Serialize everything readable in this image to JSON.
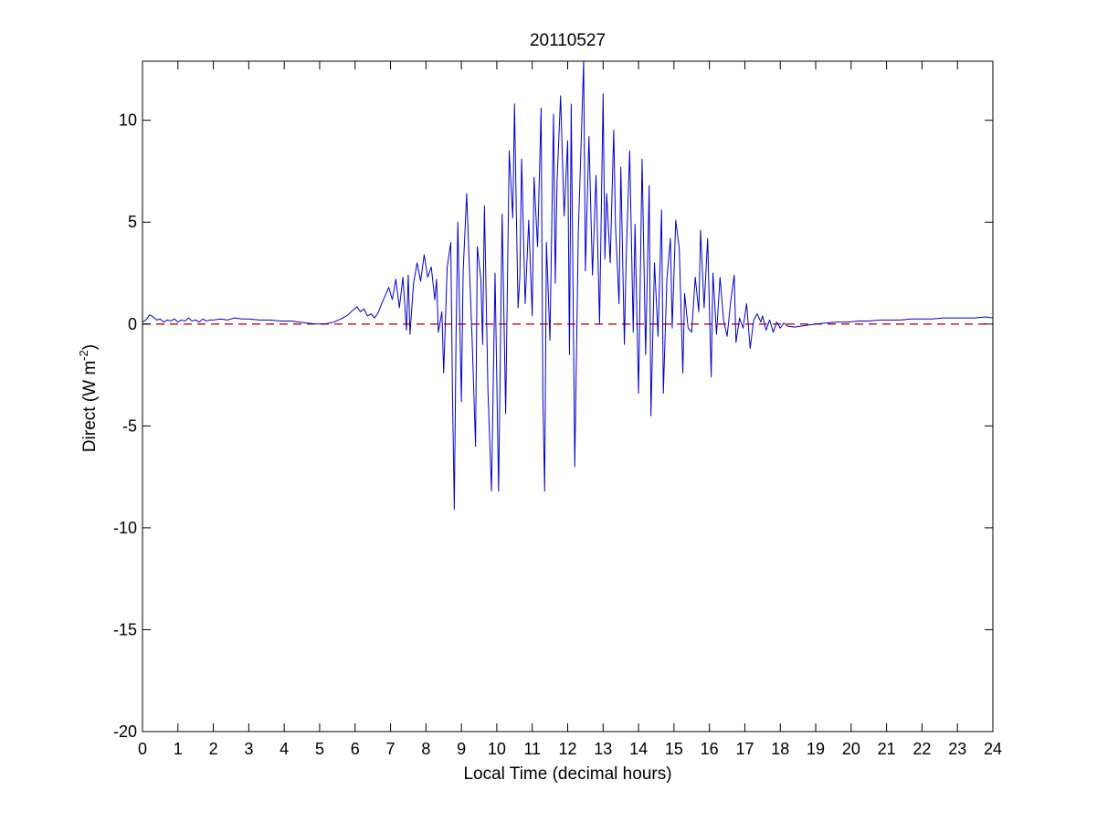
{
  "chart_data": {
    "type": "line",
    "title": "20110527",
    "xlabel": "Local Time (decimal hours)",
    "ylabel": {
      "prefix": "Direct (W m",
      "superscript": "-2",
      "suffix": ")"
    },
    "xlim": [
      0,
      24
    ],
    "ylim": [
      -20,
      12.9
    ],
    "xticks": [
      0,
      1,
      2,
      3,
      4,
      5,
      6,
      7,
      8,
      9,
      10,
      11,
      12,
      13,
      14,
      15,
      16,
      17,
      18,
      19,
      20,
      21,
      22,
      23,
      24
    ],
    "yticks": [
      -20,
      -15,
      -10,
      -5,
      0,
      5,
      10
    ],
    "grid": false,
    "box": true,
    "colors": {
      "series": "#0000cc",
      "reference": "#cc0000",
      "axes": "#000000"
    },
    "reference_line": {
      "y": 0,
      "style": "dashed"
    },
    "series": [
      {
        "points": [
          [
            0.0,
            0.1
          ],
          [
            0.1,
            0.2
          ],
          [
            0.2,
            0.45
          ],
          [
            0.3,
            0.35
          ],
          [
            0.4,
            0.2
          ],
          [
            0.5,
            0.25
          ],
          [
            0.6,
            0.1
          ],
          [
            0.7,
            0.2
          ],
          [
            0.8,
            0.15
          ],
          [
            0.9,
            0.25
          ],
          [
            1.0,
            0.1
          ],
          [
            1.1,
            0.2
          ],
          [
            1.2,
            0.15
          ],
          [
            1.3,
            0.3
          ],
          [
            1.4,
            0.15
          ],
          [
            1.5,
            0.2
          ],
          [
            1.6,
            0.1
          ],
          [
            1.7,
            0.25
          ],
          [
            1.8,
            0.15
          ],
          [
            1.9,
            0.2
          ],
          [
            2.0,
            0.2
          ],
          [
            2.2,
            0.25
          ],
          [
            2.4,
            0.2
          ],
          [
            2.6,
            0.3
          ],
          [
            2.8,
            0.25
          ],
          [
            3.0,
            0.25
          ],
          [
            3.3,
            0.2
          ],
          [
            3.6,
            0.2
          ],
          [
            3.9,
            0.15
          ],
          [
            4.2,
            0.15
          ],
          [
            4.5,
            0.08
          ],
          [
            4.8,
            0.02
          ],
          [
            5.0,
            0.0
          ],
          [
            5.2,
            0.02
          ],
          [
            5.4,
            0.1
          ],
          [
            5.6,
            0.25
          ],
          [
            5.8,
            0.45
          ],
          [
            5.95,
            0.7
          ],
          [
            6.05,
            0.85
          ],
          [
            6.15,
            0.6
          ],
          [
            6.25,
            0.75
          ],
          [
            6.35,
            0.4
          ],
          [
            6.45,
            0.5
          ],
          [
            6.55,
            0.3
          ],
          [
            6.65,
            0.55
          ],
          [
            6.75,
            1.0
          ],
          [
            6.85,
            1.4
          ],
          [
            6.95,
            1.8
          ],
          [
            7.05,
            1.2
          ],
          [
            7.15,
            2.2
          ],
          [
            7.25,
            0.8
          ],
          [
            7.35,
            2.3
          ],
          [
            7.45,
            -0.3
          ],
          [
            7.5,
            2.4
          ],
          [
            7.55,
            -0.5
          ],
          [
            7.65,
            2.0
          ],
          [
            7.75,
            3.0
          ],
          [
            7.85,
            2.1
          ],
          [
            7.95,
            3.4
          ],
          [
            8.05,
            2.3
          ],
          [
            8.15,
            2.8
          ],
          [
            8.25,
            1.2
          ],
          [
            8.3,
            2.2
          ],
          [
            8.35,
            -0.4
          ],
          [
            8.45,
            0.6
          ],
          [
            8.5,
            -2.4
          ],
          [
            8.6,
            2.8
          ],
          [
            8.7,
            4.0
          ],
          [
            8.75,
            -3.5
          ],
          [
            8.8,
            -9.1
          ],
          [
            8.85,
            -0.5
          ],
          [
            8.9,
            5.0
          ],
          [
            9.0,
            -3.8
          ],
          [
            9.05,
            2.6
          ],
          [
            9.15,
            6.4
          ],
          [
            9.2,
            4.0
          ],
          [
            9.3,
            -0.6
          ],
          [
            9.4,
            -6.0
          ],
          [
            9.45,
            3.8
          ],
          [
            9.55,
            2.2
          ],
          [
            9.6,
            -1.0
          ],
          [
            9.65,
            5.8
          ],
          [
            9.75,
            -3.3
          ],
          [
            9.85,
            -8.2
          ],
          [
            9.95,
            2.5
          ],
          [
            10.05,
            -8.2
          ],
          [
            10.15,
            5.4
          ],
          [
            10.25,
            -4.4
          ],
          [
            10.35,
            8.5
          ],
          [
            10.45,
            5.2
          ],
          [
            10.5,
            10.8
          ],
          [
            10.55,
            5.5
          ],
          [
            10.6,
            0.8
          ],
          [
            10.65,
            2.3
          ],
          [
            10.7,
            8.1
          ],
          [
            10.8,
            1.0
          ],
          [
            10.9,
            5.1
          ],
          [
            11.0,
            0.4
          ],
          [
            11.05,
            7.2
          ],
          [
            11.15,
            3.8
          ],
          [
            11.25,
            10.6
          ],
          [
            11.3,
            -3.6
          ],
          [
            11.35,
            -8.2
          ],
          [
            11.4,
            4.0
          ],
          [
            11.5,
            -0.8
          ],
          [
            11.6,
            10.3
          ],
          [
            11.65,
            2.0
          ],
          [
            11.7,
            7.0
          ],
          [
            11.8,
            11.2
          ],
          [
            11.9,
            5.3
          ],
          [
            12.0,
            9.0
          ],
          [
            12.05,
            -1.5
          ],
          [
            12.1,
            10.8
          ],
          [
            12.2,
            -7.0
          ],
          [
            12.3,
            4.5
          ],
          [
            12.4,
            10.0
          ],
          [
            12.45,
            12.9
          ],
          [
            12.5,
            2.6
          ],
          [
            12.6,
            9.2
          ],
          [
            12.7,
            2.4
          ],
          [
            12.8,
            7.3
          ],
          [
            12.9,
            0.0
          ],
          [
            13.0,
            11.3
          ],
          [
            13.05,
            3.2
          ],
          [
            13.1,
            6.4
          ],
          [
            13.2,
            3.0
          ],
          [
            13.3,
            9.5
          ],
          [
            13.35,
            4.8
          ],
          [
            13.45,
            1.0
          ],
          [
            13.5,
            7.7
          ],
          [
            13.6,
            -1.0
          ],
          [
            13.65,
            3.2
          ],
          [
            13.75,
            8.5
          ],
          [
            13.85,
            -0.4
          ],
          [
            13.9,
            4.9
          ],
          [
            14.0,
            -3.4
          ],
          [
            14.1,
            8.1
          ],
          [
            14.2,
            -1.5
          ],
          [
            14.3,
            6.8
          ],
          [
            14.35,
            -4.5
          ],
          [
            14.45,
            3.0
          ],
          [
            14.55,
            -0.6
          ],
          [
            14.65,
            5.6
          ],
          [
            14.7,
            -3.4
          ],
          [
            14.8,
            2.2
          ],
          [
            14.9,
            4.2
          ],
          [
            14.95,
            -0.2
          ],
          [
            15.05,
            5.1
          ],
          [
            15.15,
            3.7
          ],
          [
            15.25,
            -2.4
          ],
          [
            15.3,
            1.5
          ],
          [
            15.4,
            -0.2
          ],
          [
            15.5,
            -0.4
          ],
          [
            15.6,
            2.3
          ],
          [
            15.7,
            0.6
          ],
          [
            15.75,
            4.6
          ],
          [
            15.85,
            0.8
          ],
          [
            15.95,
            4.2
          ],
          [
            16.05,
            -2.6
          ],
          [
            16.1,
            2.5
          ],
          [
            16.2,
            -0.5
          ],
          [
            16.3,
            2.3
          ],
          [
            16.4,
            0.2
          ],
          [
            16.5,
            -0.6
          ],
          [
            16.6,
            1.1
          ],
          [
            16.7,
            2.4
          ],
          [
            16.75,
            -0.9
          ],
          [
            16.85,
            0.3
          ],
          [
            16.95,
            -0.2
          ],
          [
            17.05,
            1.0
          ],
          [
            17.15,
            -1.2
          ],
          [
            17.25,
            0.2
          ],
          [
            17.35,
            0.5
          ],
          [
            17.45,
            0.1
          ],
          [
            17.5,
            0.4
          ],
          [
            17.6,
            -0.3
          ],
          [
            17.7,
            0.2
          ],
          [
            17.8,
            -0.4
          ],
          [
            17.9,
            0.1
          ],
          [
            18.0,
            -0.2
          ],
          [
            18.1,
            0.05
          ],
          [
            18.2,
            -0.1
          ],
          [
            18.4,
            -0.15
          ],
          [
            18.6,
            -0.1
          ],
          [
            18.8,
            -0.05
          ],
          [
            19.0,
            0.0
          ],
          [
            19.3,
            0.05
          ],
          [
            19.6,
            0.1
          ],
          [
            19.9,
            0.1
          ],
          [
            20.2,
            0.15
          ],
          [
            20.5,
            0.15
          ],
          [
            20.8,
            0.2
          ],
          [
            21.1,
            0.2
          ],
          [
            21.4,
            0.2
          ],
          [
            21.7,
            0.25
          ],
          [
            22.0,
            0.25
          ],
          [
            22.3,
            0.25
          ],
          [
            22.6,
            0.3
          ],
          [
            22.9,
            0.3
          ],
          [
            23.2,
            0.3
          ],
          [
            23.5,
            0.3
          ],
          [
            23.8,
            0.35
          ],
          [
            24.0,
            0.3
          ]
        ]
      }
    ]
  }
}
